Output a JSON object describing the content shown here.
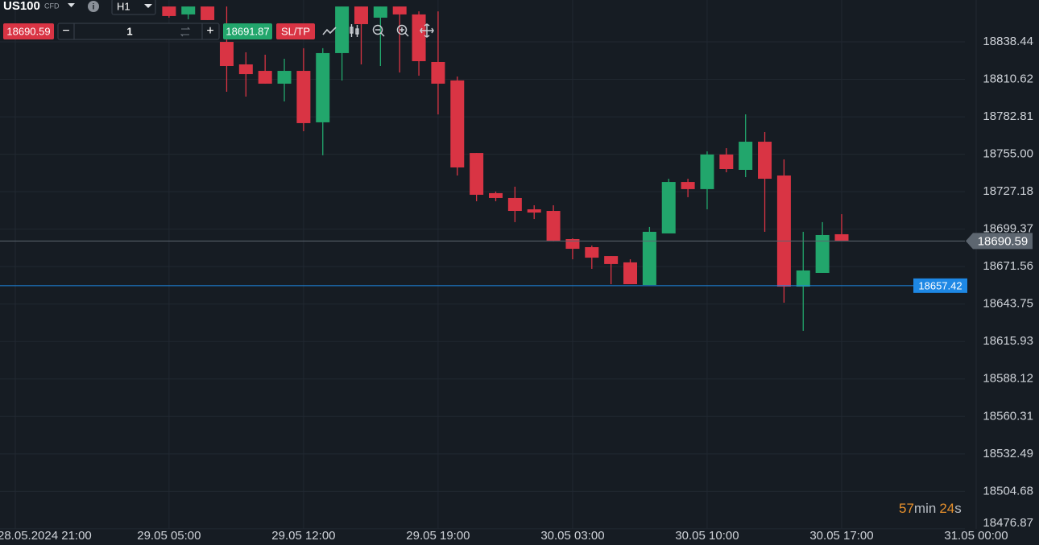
{
  "header": {
    "symbol": "US100",
    "symbol_type": "CFD",
    "timeframe": "H1",
    "sell_price": "18690.59",
    "quantity": "1",
    "buy_price": "18691.87",
    "sltp": "SL/TP"
  },
  "chart_data": {
    "type": "candlestick",
    "categories": [
      "28.05.2024 21:00",
      null,
      null,
      null,
      null,
      null,
      null,
      null,
      "29.05 05:00",
      null,
      null,
      null,
      null,
      null,
      null,
      "29.05 12:00",
      null,
      null,
      null,
      null,
      null,
      null,
      "29.05 19:00",
      null,
      null,
      null,
      null,
      null,
      null,
      "30.05 03:00",
      null,
      null,
      null,
      null,
      null,
      null,
      "30.05 10:00",
      null,
      null,
      null,
      null,
      null,
      null,
      "30.05 17:00",
      null,
      null,
      null,
      null,
      null,
      null,
      "31.05 00:00"
    ],
    "open": [
      null,
      null,
      null,
      null,
      null,
      null,
      null,
      null,
      18864.7,
      18858.8,
      18864.7,
      18838.4,
      18821.7,
      18816.9,
      18807.4,
      18816.9,
      18778.7,
      18830.1,
      18864.7,
      18856.4,
      18864.7,
      18858.8,
      18823.5,
      18809.8,
      18755.9,
      18726.1,
      18722.5,
      18714.1,
      18712.9,
      18692.0,
      18686.0,
      18679.4,
      18674.7,
      18657.9,
      18696.2,
      18734.4,
      18729.1,
      18754.8,
      18743.4,
      18764.3,
      18739.2,
      18656.7,
      18666.9,
      18695.6,
      null,
      null,
      null,
      null,
      null,
      null,
      null
    ],
    "high": [
      null,
      null,
      null,
      null,
      null,
      null,
      null,
      null,
      18864.7,
      18864.7,
      18864.7,
      18864.7,
      18830.7,
      18828.9,
      18825.9,
      18833.7,
      18833.7,
      18864.7,
      18864.7,
      18864.7,
      18864.7,
      18861.1,
      18861.1,
      18812.7,
      18755.9,
      18727.3,
      18730.9,
      18717.1,
      18717.1,
      18692.6,
      18687.2,
      18679.4,
      18677.0,
      18701.0,
      18736.8,
      18736.8,
      18757.1,
      18759.5,
      18784.6,
      18771.5,
      18751.2,
      18697.4,
      18704.6,
      18710.5,
      null,
      null,
      null,
      null,
      null,
      null,
      null
    ],
    "low": [
      null,
      null,
      null,
      null,
      null,
      null,
      null,
      null,
      18856.4,
      18855.2,
      18854.6,
      18801.4,
      18797.8,
      18807.4,
      18794.2,
      18772.1,
      18754.2,
      18809.7,
      18821.7,
      18820.5,
      18815.7,
      18813.3,
      18784.6,
      18739.2,
      18720.1,
      18720.1,
      18704.6,
      18706.9,
      18690.2,
      18677.0,
      18669.9,
      18658.5,
      18658.5,
      18657.9,
      18696.2,
      18723.1,
      18714.1,
      18741.6,
      18738.0,
      18697.4,
      18644.8,
      18623.9,
      18666.9,
      18690.6,
      null,
      null,
      null,
      null,
      null,
      null,
      null
    ],
    "close": [
      null,
      null,
      null,
      null,
      null,
      null,
      null,
      null,
      18857.6,
      18864.7,
      18854.6,
      18820.5,
      18814.5,
      18807.4,
      18816.9,
      18778.1,
      18830.1,
      18864.7,
      18851.6,
      18864.7,
      18858.8,
      18824.1,
      18807.4,
      18745.2,
      18724.9,
      18722.5,
      18712.9,
      18711.7,
      18690.8,
      18684.8,
      18678.2,
      18673.5,
      18658.5,
      18697.4,
      18734.4,
      18729.1,
      18754.8,
      18744.0,
      18764.3,
      18736.8,
      18656.7,
      18668.7,
      18695.0,
      18690.6,
      null,
      null,
      null,
      null,
      null,
      null,
      null
    ],
    "up_color": "#22a66c",
    "down_color": "#d93444",
    "ylim": [
      18476.81,
      18869.52
    ],
    "yticks": [
      18838.44,
      18810.62,
      18782.81,
      {
        "value": 18755,
        "label": "18755.00"
      },
      18727.18,
      18699.37,
      18671.56,
      18643.75,
      18615.93,
      18588.12,
      18560.31,
      18532.49,
      18504.68,
      18476.87
    ],
    "grid": true,
    "price_lines": [
      {
        "value": 18690.59,
        "color": "#5d6670"
      },
      {
        "value": 18657.42,
        "color": "#1e88e5"
      }
    ]
  },
  "countdown": {
    "minutes": "57",
    "minutes_unit": "min",
    "seconds": "24",
    "seconds_unit": "s"
  }
}
